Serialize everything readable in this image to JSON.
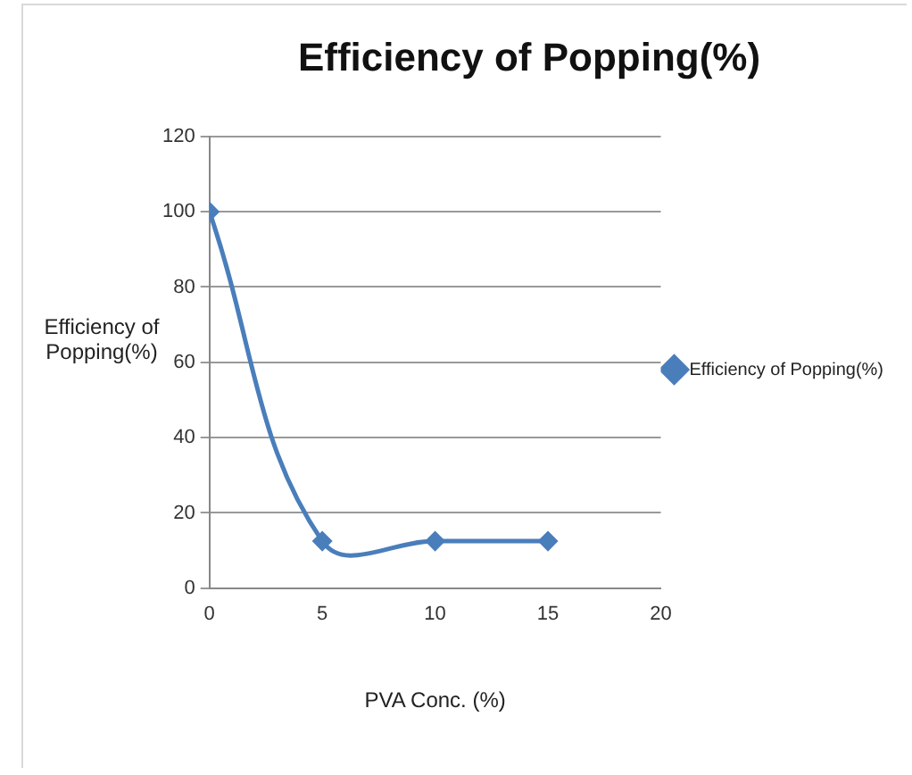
{
  "chart_data": {
    "type": "line",
    "title": "Efficiency of Popping(%)",
    "xlabel": "PVA Conc. (%)",
    "ylabel": "Efficiency of Popping(%)",
    "x": [
      0,
      5,
      10,
      15
    ],
    "series": [
      {
        "name": "Efficiency of Popping(%)",
        "color": "#4a7ebb",
        "values": [
          100,
          12.5,
          12.5,
          12.5
        ]
      }
    ],
    "xlim": [
      0,
      20
    ],
    "xticks": [
      0,
      5,
      10,
      15,
      20
    ],
    "ylim": [
      0,
      120
    ],
    "yticks": [
      0,
      20,
      40,
      60,
      80,
      100,
      120
    ],
    "grid": "y",
    "legend": "right",
    "marker": "diamond",
    "line_style": "solid"
  }
}
